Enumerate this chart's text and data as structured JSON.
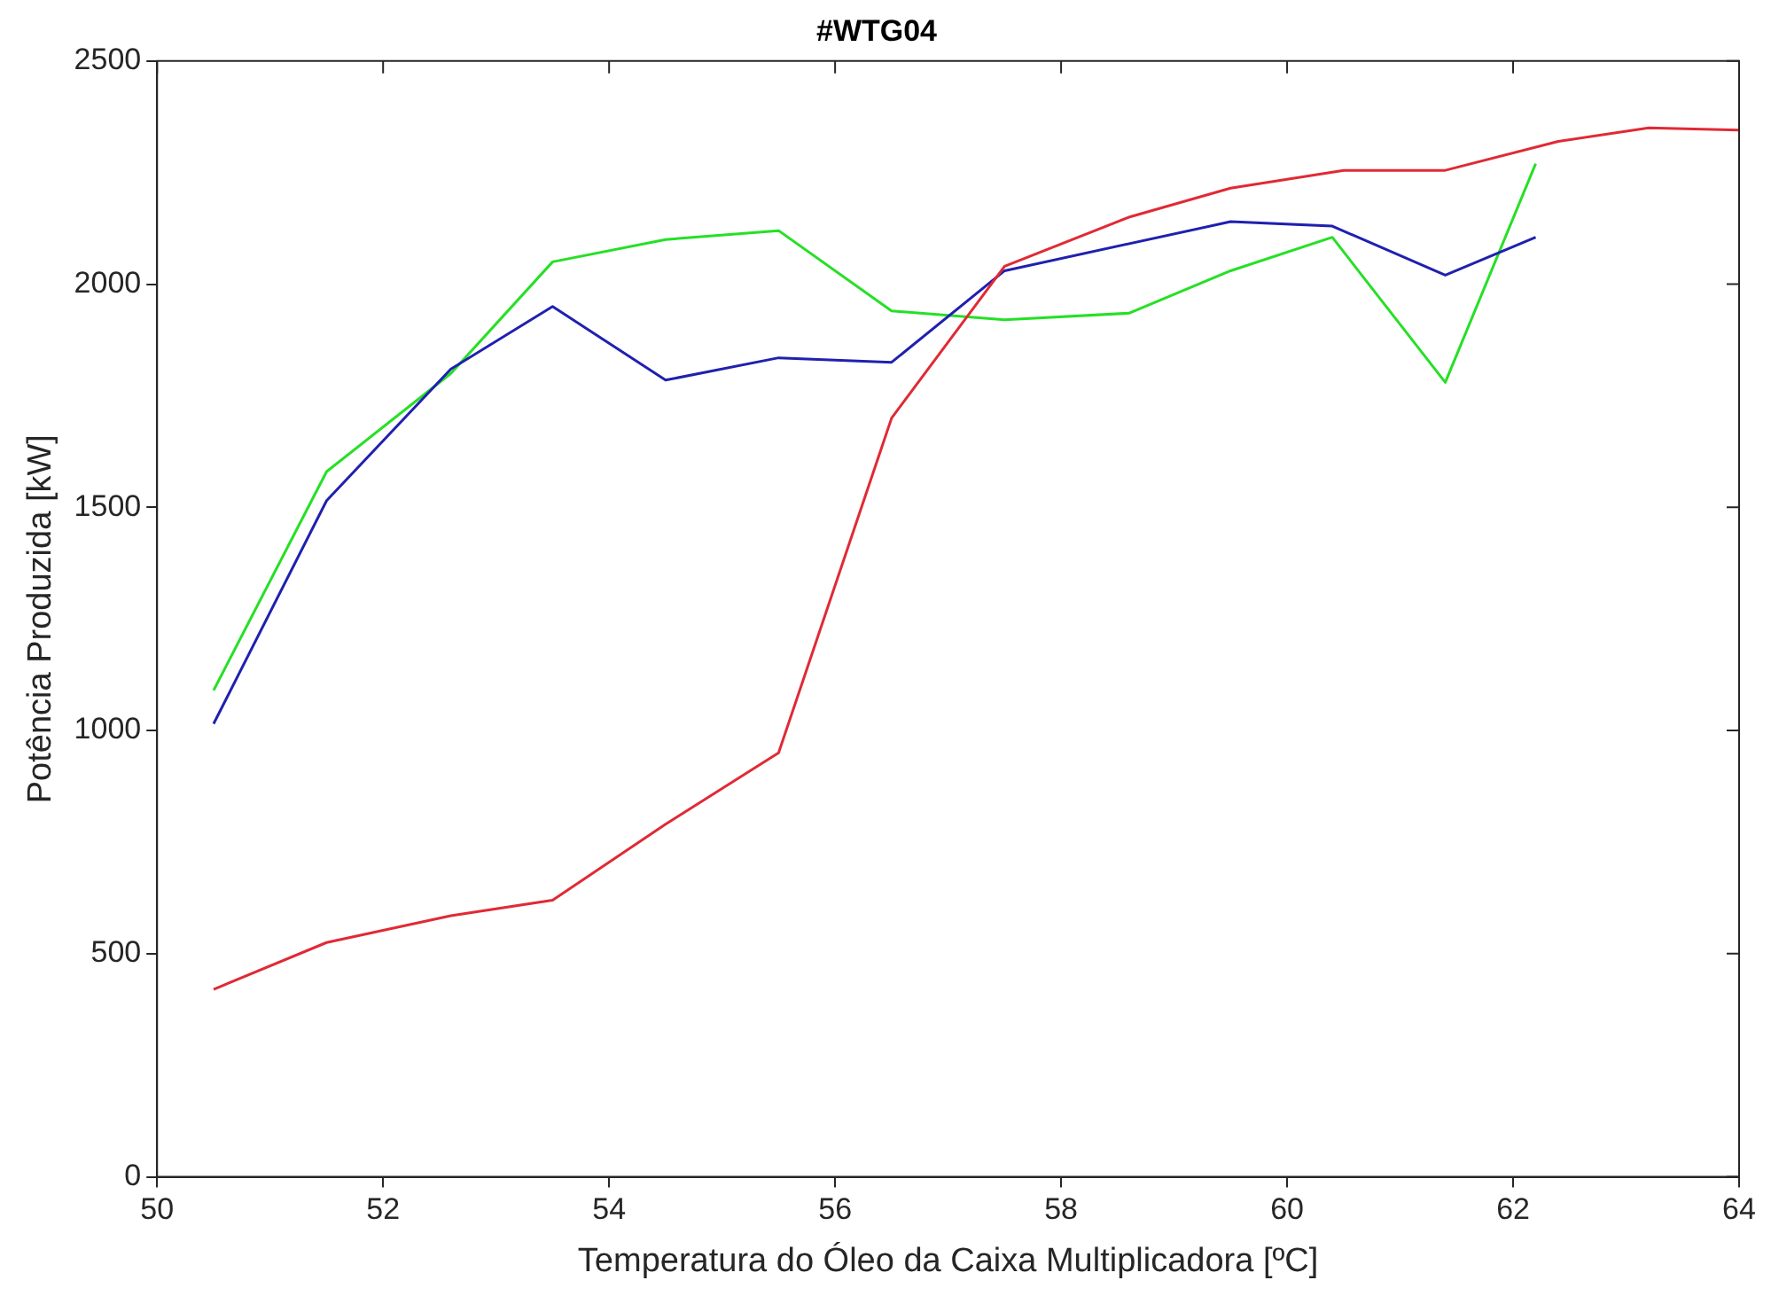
{
  "chart_data": {
    "type": "line",
    "title": "#WTG04",
    "xlabel": "Temperatura do Óleo da Caixa Multiplicadora [ºC]",
    "ylabel": "Potência Produzida [kW]",
    "xlim": [
      50,
      64
    ],
    "xticks": [
      50,
      52,
      54,
      56,
      58,
      60,
      62,
      64
    ],
    "ylim": [
      0,
      2500
    ],
    "yticks": [
      0,
      500,
      1000,
      1500,
      2000,
      2500
    ],
    "grid": false,
    "legend": false,
    "marker": "none",
    "line_style": "solid",
    "series": [
      {
        "color": "#e02a35",
        "x": [
          50.5,
          51.5,
          52.6,
          53.5,
          54.5,
          55.5,
          56.5,
          57.5,
          58.6,
          59.5,
          60.5,
          61.4,
          62.4,
          63.2,
          64
        ],
        "values": [
          420,
          525,
          585,
          620,
          790,
          950,
          1700,
          2040,
          2150,
          2215,
          2255,
          2255,
          2320,
          2350,
          2345
        ]
      },
      {
        "color": "#2020b0",
        "x": [
          50.5,
          51.5,
          52.6,
          53.5,
          54.5,
          55.5,
          56.5,
          57.5,
          59.5,
          60.4,
          61.4,
          62.2
        ],
        "values": [
          1015,
          1515,
          1810,
          1950,
          1785,
          1835,
          1825,
          2030,
          2140,
          2130,
          2020,
          2105
        ]
      },
      {
        "color": "#25e025",
        "x": [
          50.5,
          51.5,
          52.6,
          53.5,
          54.5,
          55.5,
          56.5,
          57.5,
          58.6,
          59.5,
          60.4,
          61.4,
          62.2
        ],
        "values": [
          1090,
          1580,
          1800,
          2050,
          2100,
          2120,
          1940,
          1920,
          1935,
          2030,
          2105,
          1780,
          2270
        ]
      }
    ]
  }
}
